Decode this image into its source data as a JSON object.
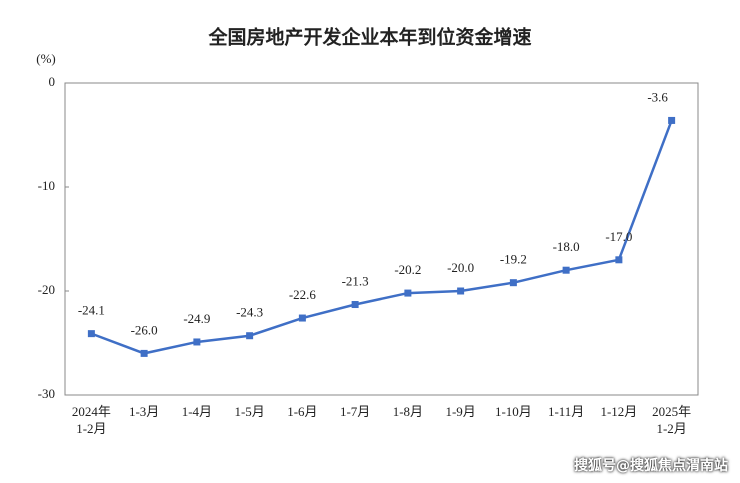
{
  "chart_data": {
    "type": "line",
    "title": "全国房地产开发企业本年到位资金增速",
    "y_unit": "(%)",
    "categories": [
      "2024年\n1-2月",
      "1-3月",
      "1-4月",
      "1-5月",
      "1-6月",
      "1-7月",
      "1-8月",
      "1-9月",
      "1-10月",
      "1-11月",
      "1-12月",
      "2025年\n1-2月"
    ],
    "series": [
      {
        "name": "本年到位资金增速",
        "color": "#3f6fc6",
        "values": [
          -24.1,
          -26.0,
          -24.9,
          -24.3,
          -22.6,
          -21.3,
          -20.2,
          -20.0,
          -19.2,
          -18.0,
          -17.0,
          -3.6
        ],
        "value_labels": [
          "-24.1",
          "-26.0",
          "-24.9",
          "-24.3",
          "-22.6",
          "-21.3",
          "-20.2",
          "-20.0",
          "-19.2",
          "-18.0",
          "-17.0",
          "-3.6"
        ]
      }
    ],
    "ylim": [
      -30,
      0
    ],
    "yticks": [
      0,
      -10,
      -20,
      -30
    ],
    "grid": false
  },
  "watermark": "搜狐号@搜狐焦点渭南站"
}
